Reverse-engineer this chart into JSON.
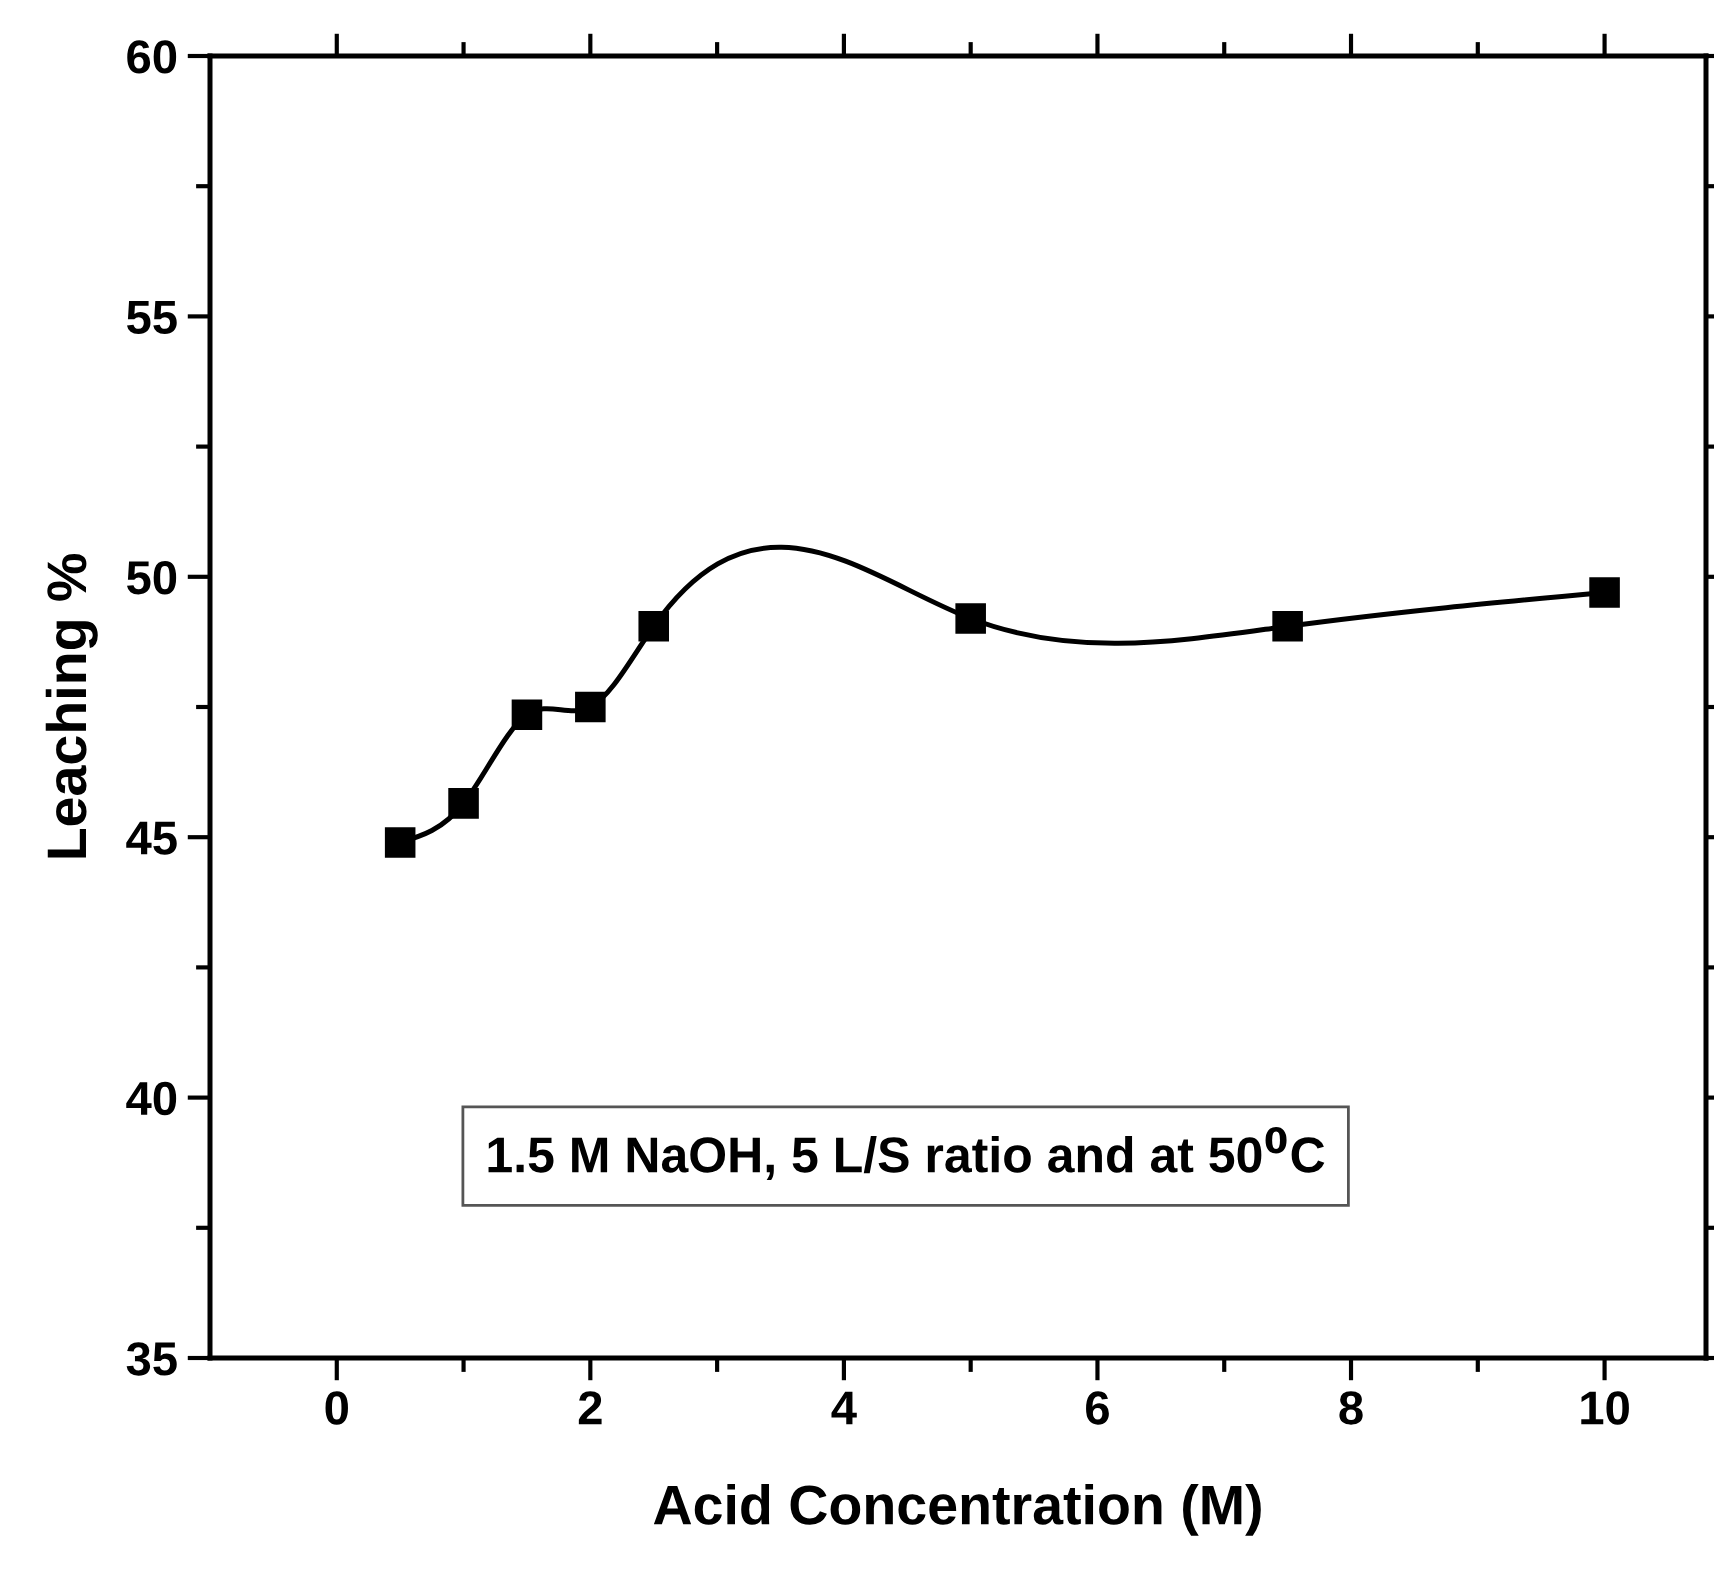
{
  "chart_data": {
    "type": "line",
    "xlabel": "Acid Concentration (M)",
    "ylabel": "Leaching %",
    "x": [
      0.5,
      1,
      1.5,
      2,
      2.5,
      5,
      7.5,
      10
    ],
    "series": [
      {
        "color": "#000000",
        "values": [
          44.9,
          45.65,
          47.35,
          47.5,
          49.05,
          49.2,
          49.05,
          49.7
        ]
      }
    ],
    "xlim": [
      -1,
      10.8
    ],
    "xticks": [
      0,
      2,
      4,
      6,
      8,
      10
    ],
    "ylim": [
      35,
      60
    ],
    "yticks": [
      35,
      40,
      45,
      50,
      55,
      60
    ],
    "marker": "square",
    "line_style": "solid",
    "grid": false,
    "legend": false,
    "annotations": [
      "1.5 M NaOH, 5 L/S ratio and at 50$^{0}$C"
    ]
  }
}
